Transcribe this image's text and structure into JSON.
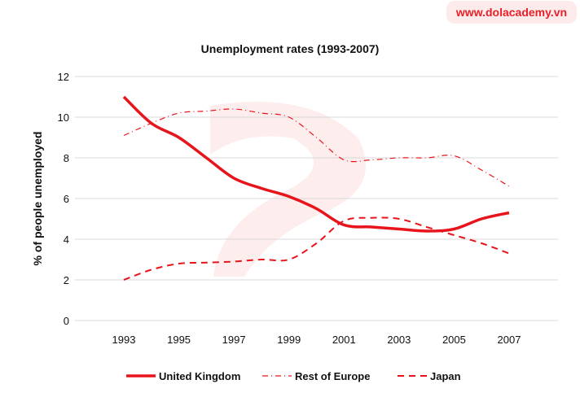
{
  "brand": "www.dolacademy.vn",
  "colors": {
    "line": "#e8141c",
    "grid": "#d9d9d9",
    "text": "#111111",
    "brand_bg": "#fdeaea"
  },
  "chart_data": {
    "type": "line",
    "title": "Unemployment rates (1993-2007)",
    "xlabel": "",
    "ylabel": "% of people unemployed",
    "x": [
      1993,
      1994,
      1995,
      1996,
      1997,
      1998,
      1999,
      2000,
      2001,
      2002,
      2003,
      2004,
      2005,
      2006,
      2007
    ],
    "x_ticks": [
      "1993",
      "1995",
      "1997",
      "1999",
      "2001",
      "2003",
      "2005",
      "2007"
    ],
    "y_ticks": [
      "0",
      "2",
      "4",
      "6",
      "8",
      "10",
      "12"
    ],
    "ylim": [
      0,
      12
    ],
    "grid": true,
    "legend_position": "bottom",
    "series": [
      {
        "name": "United Kingdom",
        "style": "solid",
        "values": [
          11.0,
          9.7,
          9.0,
          8.0,
          7.0,
          6.5,
          6.1,
          5.5,
          4.7,
          4.6,
          4.5,
          4.4,
          4.5,
          5.0,
          5.3
        ]
      },
      {
        "name": "Rest of Europe",
        "style": "dashdot",
        "values": [
          9.1,
          9.7,
          10.2,
          10.3,
          10.4,
          10.2,
          10.0,
          9.0,
          7.9,
          7.9,
          8.0,
          8.0,
          8.1,
          7.4,
          6.6
        ]
      },
      {
        "name": "Japan",
        "style": "dashed",
        "values": [
          2.0,
          2.5,
          2.8,
          2.85,
          2.9,
          3.0,
          3.0,
          3.8,
          4.9,
          5.05,
          5.0,
          4.6,
          4.2,
          3.8,
          3.3
        ]
      }
    ]
  }
}
